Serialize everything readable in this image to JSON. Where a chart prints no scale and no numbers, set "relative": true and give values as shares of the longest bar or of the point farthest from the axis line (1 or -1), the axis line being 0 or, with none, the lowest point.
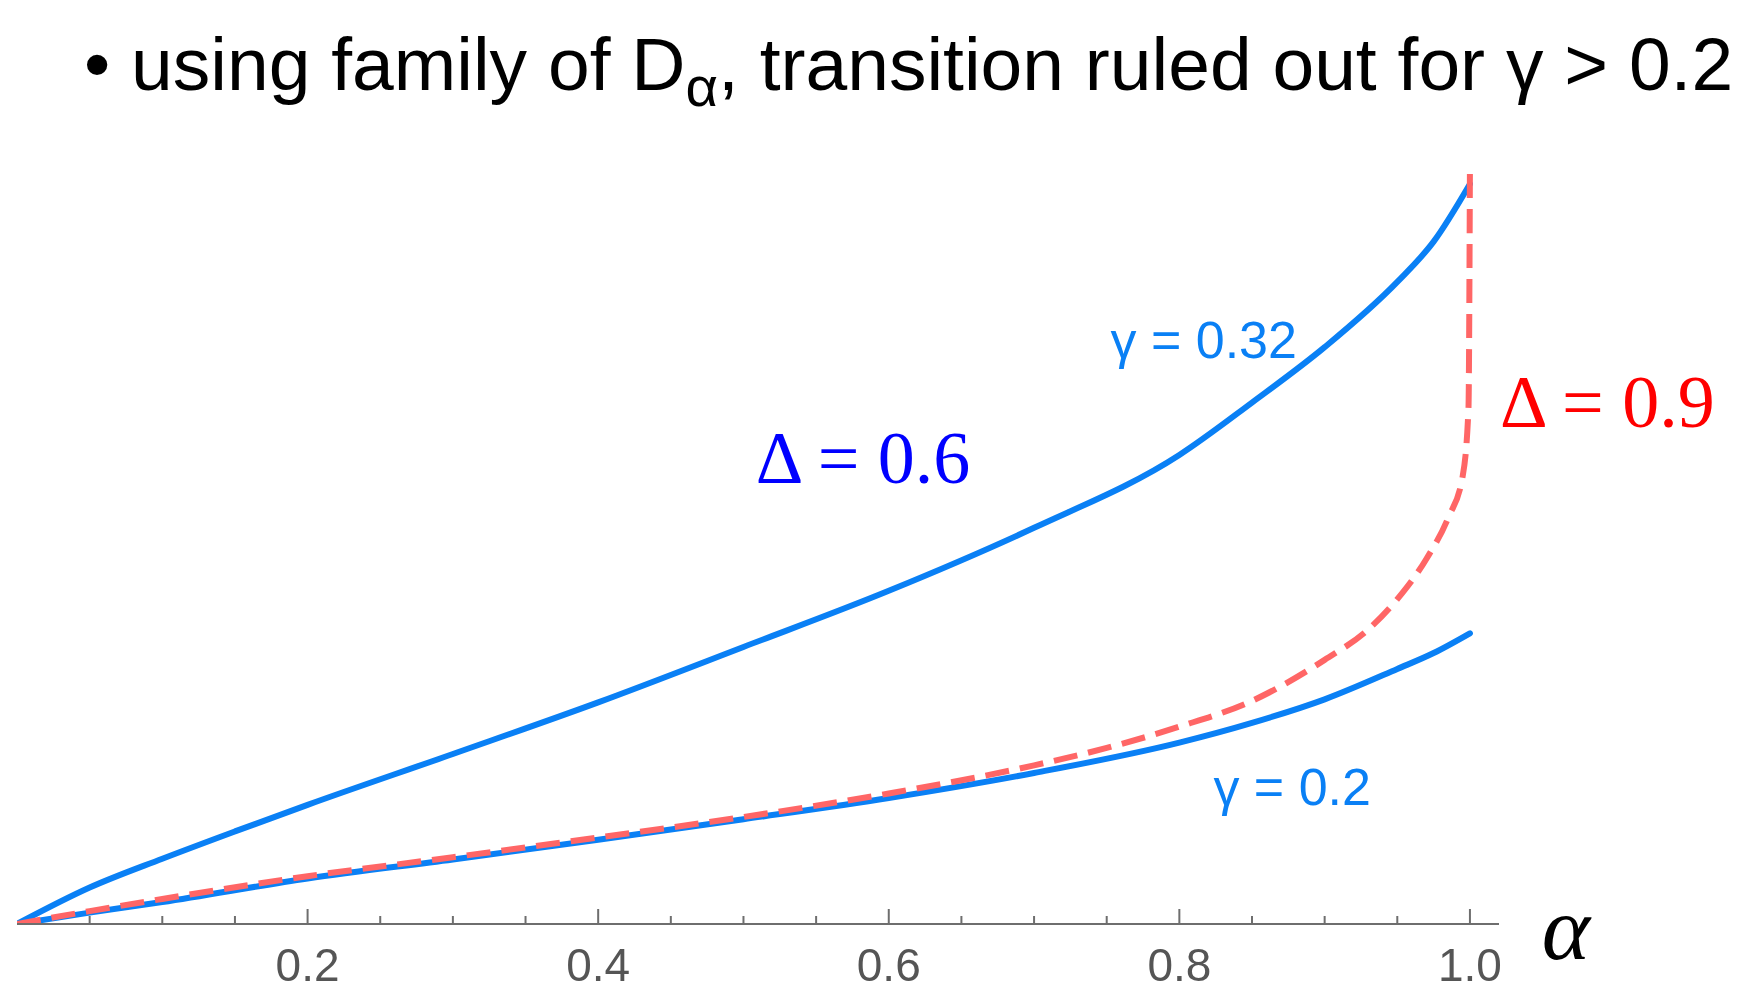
{
  "chart_data": {
    "type": "line",
    "title": "• using family of D$_{α}$, transition ruled out for γ > 0.2",
    "xlabel": "α",
    "annotations": [
      "Δ = 0.6"
    ],
    "xlim": [
      0,
      1.02
    ],
    "xticks": [
      {
        "value": 0.05,
        "label": null
      },
      {
        "value": 0.1,
        "label": null
      },
      {
        "value": 0.15,
        "label": null
      },
      0.2,
      {
        "value": 0.25,
        "label": null
      },
      {
        "value": 0.3,
        "label": null
      },
      {
        "value": 0.35,
        "label": null
      },
      0.4,
      {
        "value": 0.45,
        "label": null
      },
      {
        "value": 0.5,
        "label": null
      },
      {
        "value": 0.55,
        "label": null
      },
      0.6,
      {
        "value": 0.65,
        "label": null
      },
      {
        "value": 0.7,
        "label": null
      },
      {
        "value": 0.75,
        "label": null
      },
      0.8,
      {
        "value": 0.85,
        "label": null
      },
      {
        "value": 0.9,
        "label": null
      },
      {
        "value": 0.95,
        "label": null
      },
      {
        "value": 1,
        "label": "1.0"
      }
    ],
    "relative": true,
    "marker": "none",
    "series": [
      {
        "name": "γ = 0.32",
        "color": "#0a80f5",
        "line_style": "solid",
        "x": [
          0,
          0.05,
          0.1,
          0.15,
          0.2,
          0.3,
          0.4,
          0.5,
          0.6,
          0.7,
          0.8,
          0.85,
          0.9,
          0.95,
          0.975,
          1
        ],
        "values": [
          0,
          0.048,
          0.086,
          0.122,
          0.157,
          0.224,
          0.292,
          0.365,
          0.439,
          0.522,
          0.618,
          0.687,
          0.76,
          0.846,
          0.899,
          0.975
        ]
      },
      {
        "name": "γ = 0.2",
        "color": "#0a80f5",
        "line_style": "solid",
        "x": [
          0,
          0.05,
          0.1,
          0.2,
          0.3,
          0.4,
          0.5,
          0.6,
          0.7,
          0.8,
          0.85,
          0.9,
          0.95,
          0.975,
          1
        ],
        "values": [
          0,
          0.015,
          0.029,
          0.06,
          0.085,
          0.111,
          0.138,
          0.166,
          0.199,
          0.239,
          0.265,
          0.296,
          0.336,
          0.357,
          0.383
        ]
      },
      {
        "name": "Δ = 0.9",
        "color": "#ff6666",
        "line_style": "dashed",
        "x": [
          0,
          0.05,
          0.1,
          0.2,
          0.3,
          0.4,
          0.5,
          0.6,
          0.7,
          0.75,
          0.8,
          0.85,
          0.9,
          0.93,
          0.95,
          0.97,
          0.985,
          0.995,
          0.999,
          1
        ],
        "values": [
          0,
          0.017,
          0.033,
          0.063,
          0.088,
          0.114,
          0.141,
          0.172,
          0.209,
          0.232,
          0.26,
          0.294,
          0.348,
          0.388,
          0.428,
          0.481,
          0.535,
          0.59,
          0.68,
          1
        ]
      }
    ]
  }
}
